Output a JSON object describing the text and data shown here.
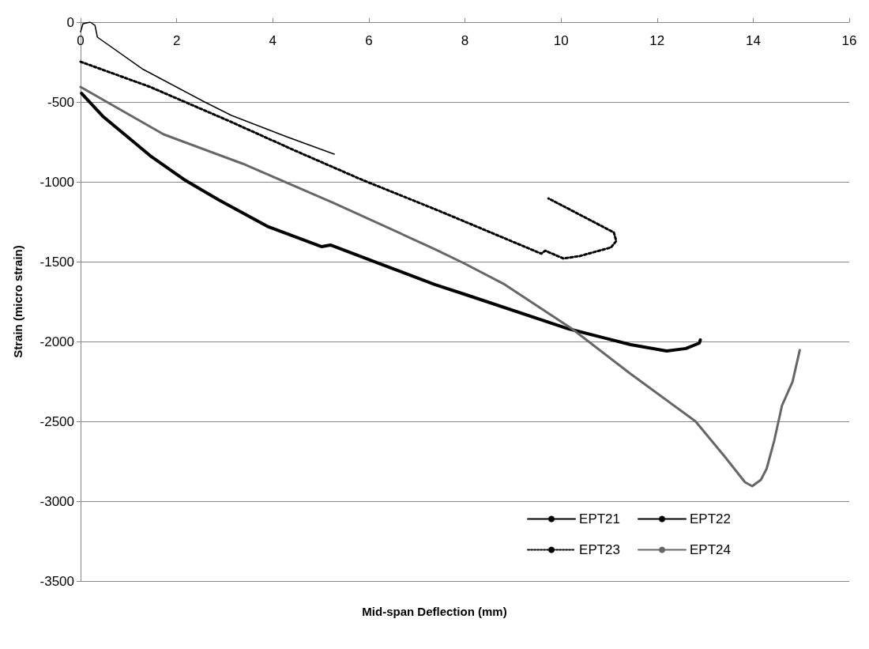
{
  "chart_data": {
    "type": "line",
    "xlabel": "Mid-span Deflection (mm)",
    "ylabel": "Strain (micro strain)",
    "xlim": [
      0,
      16
    ],
    "xticks": [
      0,
      2,
      4,
      6,
      8,
      10,
      12,
      14,
      16
    ],
    "ylim": [
      -3500,
      0
    ],
    "yticks": [
      -3500,
      -3000,
      -2500,
      -2000,
      -1500,
      -1000,
      -500,
      0
    ],
    "grid": "y",
    "legend": "bottom right",
    "marker": "none",
    "series": [
      {
        "name": "EPT21",
        "color": "#000000",
        "line_style": "solid",
        "x": [
          0,
          0.05,
          0.2,
          0.3,
          0.35,
          1.28,
          2.55,
          3.14,
          4.29,
          5.28
        ],
        "values": [
          -60,
          -10,
          0,
          -20,
          -94,
          -292,
          -495,
          -584,
          -718,
          -827
        ]
      },
      {
        "name": "EPT22",
        "color": "#000000",
        "line_style": "solid",
        "x": [
          0.02,
          0.46,
          1.45,
          2.15,
          2.88,
          3.91,
          5.02,
          5.2,
          6.38,
          7.37,
          8.03,
          10.16,
          11.45,
          12.2,
          12.6,
          12.88,
          12.9
        ],
        "values": [
          -446,
          -589,
          -837,
          -985,
          -1114,
          -1282,
          -1406,
          -1396,
          -1530,
          -1643,
          -1708,
          -1921,
          -2020,
          -2059,
          -2044,
          -2010,
          -1990
        ]
      },
      {
        "name": "EPT23",
        "color": "#000000",
        "line_style": "dotted",
        "x": [
          0,
          1.45,
          3.09,
          4.52,
          5.84,
          7.43,
          7.98,
          9.59,
          9.67,
          10.05,
          10.39,
          11.04,
          11.15,
          11.1,
          9.74
        ],
        "values": [
          -248,
          -406,
          -619,
          -812,
          -985,
          -1178,
          -1247,
          -1450,
          -1431,
          -1480,
          -1465,
          -1411,
          -1371,
          -1317,
          -1104
        ]
      },
      {
        "name": "EPT24",
        "color": "#666666",
        "line_style": "solid",
        "x": [
          0,
          1.73,
          3.37,
          5.28,
          7.37,
          7.98,
          8.83,
          10.23,
          11.45,
          12.8,
          13.4,
          13.83,
          13.98,
          14.16,
          14.28,
          14.44,
          14.6,
          14.82,
          14.97
        ],
        "values": [
          -406,
          -703,
          -886,
          -1134,
          -1421,
          -1510,
          -1643,
          -1921,
          -2203,
          -2500,
          -2718,
          -2881,
          -2906,
          -2866,
          -2797,
          -2619,
          -2401,
          -2252,
          -2054
        ]
      }
    ]
  }
}
